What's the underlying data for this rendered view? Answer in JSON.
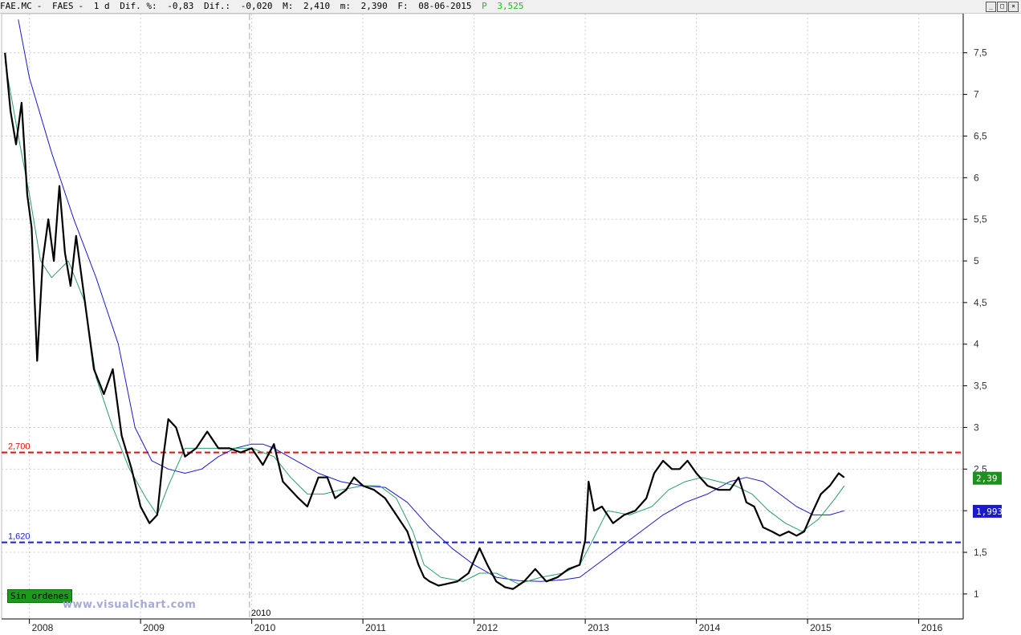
{
  "header": {
    "symbol": "FAE.MC",
    "name": "FAES",
    "period": "1 d",
    "pct_label": "Dif. %:",
    "pct_value": "-0,83",
    "dif_label": "Dif.:",
    "dif_value": "-0,020",
    "max_label": "M:",
    "max_value": "2,410",
    "min_label": "m:",
    "min_value": "2,390",
    "date_label": "F:",
    "date_value": "08-06-2015",
    "pos_label": "P",
    "pos_value": "3,525"
  },
  "watermark": "www.visualchart.com",
  "orders_badge": "Sin ordenes",
  "colors": {
    "price": "#000000",
    "ma_short": "#2a9d6a",
    "ma_long": "#1a1acc",
    "resistance": "#e01010",
    "support": "#1a1adc",
    "grid": "#cfcfcf",
    "last_price_box": "#1f8f1f",
    "ma_box": "#1a1acc"
  },
  "chart_data": {
    "type": "line",
    "x_unit": "year",
    "xlim": [
      2007.75,
      2016.4
    ],
    "ylim": [
      0.7,
      7.97
    ],
    "y_ticks": [
      "1",
      "1,5",
      "2",
      "2,5",
      "3",
      "3,5",
      "4",
      "4,5",
      "5",
      "5,5",
      "6",
      "6,5",
      "7",
      "7,5"
    ],
    "y_tick_values": [
      1,
      1.5,
      2,
      2.5,
      3,
      3.5,
      4,
      4.5,
      5,
      5.5,
      6,
      6.5,
      7,
      7.5
    ],
    "x_ticks": [
      "2008",
      "2009",
      "2010",
      "2011",
      "2012",
      "2013",
      "2014",
      "2015",
      "2016"
    ],
    "x_tick_values": [
      2008,
      2009,
      2010,
      2011,
      2012,
      2013,
      2014,
      2015,
      2016
    ],
    "cursor_label": "2010",
    "cursor_x": 2009.98,
    "grid": true,
    "series": [
      {
        "key": "price",
        "x": [
          2007.78,
          2007.83,
          2007.88,
          2007.93,
          2007.98,
          2008.02,
          2008.07,
          2008.12,
          2008.17,
          2008.22,
          2008.27,
          2008.32,
          2008.37,
          2008.42,
          2008.5,
          2008.58,
          2008.67,
          2008.75,
          2008.83,
          2008.92,
          2009.0,
          2009.08,
          2009.15,
          2009.2,
          2009.25,
          2009.32,
          2009.4,
          2009.5,
          2009.6,
          2009.7,
          2009.8,
          2009.9,
          2010.0,
          2010.1,
          2010.2,
          2010.28,
          2010.35,
          2010.42,
          2010.5,
          2010.6,
          2010.68,
          2010.75,
          2010.85,
          2010.92,
          2011.0,
          2011.1,
          2011.2,
          2011.3,
          2011.4,
          2011.5,
          2011.55,
          2011.6,
          2011.68,
          2011.75,
          2011.85,
          2011.95,
          2012.05,
          2012.12,
          2012.2,
          2012.28,
          2012.35,
          2012.45,
          2012.55,
          2012.65,
          2012.75,
          2012.85,
          2012.95,
          2013.0,
          2013.03,
          2013.08,
          2013.15,
          2013.25,
          2013.35,
          2013.45,
          2013.55,
          2013.62,
          2013.7,
          2013.78,
          2013.85,
          2013.92,
          2014.0,
          2014.1,
          2014.2,
          2014.3,
          2014.38,
          2014.45,
          2014.52,
          2014.6,
          2014.68,
          2014.75,
          2014.83,
          2014.9,
          2014.97,
          2015.05,
          2015.12,
          2015.2,
          2015.28,
          2015.33
        ],
        "y": [
          7.5,
          6.8,
          6.4,
          6.9,
          5.8,
          5.4,
          3.8,
          5.0,
          5.5,
          5.0,
          5.9,
          5.1,
          4.7,
          5.3,
          4.5,
          3.7,
          3.4,
          3.7,
          2.9,
          2.5,
          2.05,
          1.85,
          1.95,
          2.6,
          3.1,
          3.0,
          2.65,
          2.75,
          2.95,
          2.75,
          2.75,
          2.7,
          2.75,
          2.55,
          2.8,
          2.35,
          2.25,
          2.15,
          2.05,
          2.4,
          2.4,
          2.15,
          2.25,
          2.4,
          2.3,
          2.25,
          2.15,
          1.95,
          1.75,
          1.35,
          1.2,
          1.15,
          1.1,
          1.12,
          1.15,
          1.25,
          1.55,
          1.35,
          1.15,
          1.08,
          1.06,
          1.15,
          1.3,
          1.15,
          1.2,
          1.3,
          1.35,
          1.65,
          2.35,
          2.0,
          2.05,
          1.85,
          1.95,
          2.0,
          2.15,
          2.45,
          2.6,
          2.5,
          2.5,
          2.6,
          2.45,
          2.3,
          2.25,
          2.25,
          2.4,
          2.1,
          2.05,
          1.8,
          1.75,
          1.7,
          1.75,
          1.7,
          1.75,
          2.0,
          2.2,
          2.3,
          2.45,
          2.4
        ]
      },
      {
        "key": "ma_short",
        "x": [
          2007.78,
          2007.9,
          2008.0,
          2008.1,
          2008.2,
          2008.35,
          2008.5,
          2008.6,
          2008.75,
          2008.9,
          2009.05,
          2009.15,
          2009.25,
          2009.4,
          2009.6,
          2009.8,
          2010.0,
          2010.2,
          2010.35,
          2010.5,
          2010.65,
          2010.8,
          2011.0,
          2011.15,
          2011.3,
          2011.45,
          2011.55,
          2011.7,
          2011.9,
          2012.05,
          2012.2,
          2012.4,
          2012.6,
          2012.8,
          2012.95,
          2013.05,
          2013.2,
          2013.4,
          2013.6,
          2013.75,
          2013.9,
          2014.05,
          2014.2,
          2014.35,
          2014.5,
          2014.65,
          2014.8,
          2014.95,
          2015.1,
          2015.25,
          2015.33
        ],
        "y": [
          7.4,
          6.5,
          5.8,
          5.0,
          4.8,
          5.0,
          4.5,
          3.6,
          3.0,
          2.5,
          2.15,
          1.95,
          2.3,
          2.75,
          2.75,
          2.75,
          2.75,
          2.65,
          2.4,
          2.2,
          2.2,
          2.25,
          2.3,
          2.3,
          2.15,
          1.75,
          1.35,
          1.2,
          1.15,
          1.25,
          1.25,
          1.12,
          1.2,
          1.25,
          1.35,
          1.6,
          2.0,
          1.95,
          2.05,
          2.25,
          2.35,
          2.4,
          2.35,
          2.3,
          2.2,
          2.0,
          1.85,
          1.75,
          1.9,
          2.15,
          2.3
        ]
      },
      {
        "key": "ma_long",
        "x": [
          2007.9,
          2008.0,
          2008.2,
          2008.4,
          2008.6,
          2008.8,
          2008.95,
          2009.1,
          2009.25,
          2009.4,
          2009.55,
          2009.7,
          2009.85,
          2010.0,
          2010.1,
          2010.2,
          2010.4,
          2010.6,
          2010.8,
          2011.0,
          2011.2,
          2011.4,
          2011.6,
          2011.8,
          2012.0,
          2012.2,
          2012.4,
          2012.6,
          2012.8,
          2012.95,
          2013.1,
          2013.3,
          2013.5,
          2013.7,
          2013.9,
          2014.1,
          2014.3,
          2014.45,
          2014.6,
          2014.75,
          2014.9,
          2015.05,
          2015.2,
          2015.33
        ],
        "y": [
          7.9,
          7.2,
          6.3,
          5.5,
          4.8,
          4.0,
          3.0,
          2.6,
          2.5,
          2.45,
          2.5,
          2.65,
          2.75,
          2.8,
          2.8,
          2.75,
          2.6,
          2.45,
          2.35,
          2.3,
          2.28,
          2.1,
          1.8,
          1.55,
          1.35,
          1.2,
          1.16,
          1.15,
          1.17,
          1.2,
          1.35,
          1.55,
          1.75,
          1.95,
          2.1,
          2.2,
          2.35,
          2.4,
          2.35,
          2.2,
          2.05,
          1.95,
          1.95,
          2.0
        ]
      }
    ],
    "levels": [
      {
        "key": "resistance",
        "label": "2,700",
        "value": 2.7
      },
      {
        "key": "support",
        "label": "1,620",
        "value": 1.62
      }
    ],
    "price_labels": [
      {
        "key": "last",
        "label": "2,39",
        "value": 2.39
      },
      {
        "key": "ma",
        "label": "1,993",
        "value": 1.993
      }
    ]
  }
}
